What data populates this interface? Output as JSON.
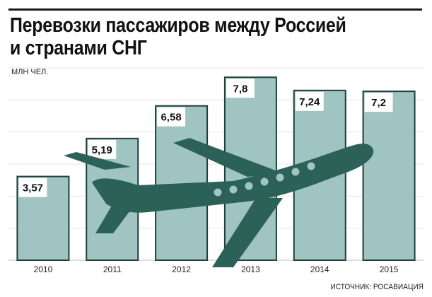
{
  "title_lines": [
    "Перевозки пассажиров между Россией",
    "и странами СНГ"
  ],
  "unit": "МЛН ЧЕЛ.",
  "source": "ИСТОЧНИК: РОСАВИАЦИЯ",
  "colors": {
    "bar_fill": "#9fc4c2",
    "bar_stroke": "#1f3f3b",
    "label_box": "#ffffff",
    "plane": "#2c6157",
    "plane_window": "#9fc4c2",
    "grid": "#e4e4e4"
  },
  "icon": "airplane-illustration",
  "chart_data": {
    "type": "bar",
    "title": "Перевозки пассажиров между Россией и странами СНГ",
    "ylabel": "МЛН ЧЕЛ.",
    "xlabel": "",
    "categories": [
      "2010",
      "2011",
      "2012",
      "2013",
      "2014",
      "2015"
    ],
    "values": [
      3.57,
      5.19,
      6.58,
      7.8,
      7.24,
      7.2
    ],
    "value_labels": [
      "3,57",
      "5,19",
      "6,58",
      "7,8",
      "7,24",
      "7,2"
    ],
    "ylim": [
      0,
      8.2
    ],
    "grid": true,
    "legend": "none"
  }
}
